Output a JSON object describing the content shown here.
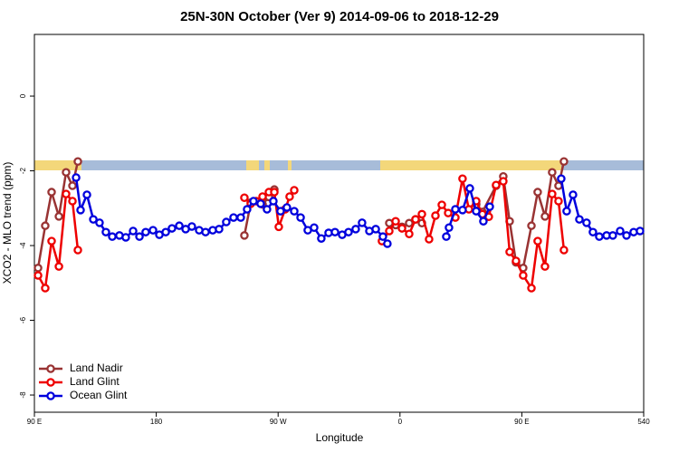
{
  "chart_data": {
    "type": "line",
    "title": "25N-30N October (Ver 9)   2014-09-06 to 2018-12-29",
    "x_label": "Longitude",
    "y_label": "XCO2 - MLO trend (ppm)",
    "xlim": [
      90,
      540
    ],
    "xticks": [
      {
        "value": 90,
        "label": "90 E"
      },
      180,
      {
        "value": 270,
        "label": "90 W"
      },
      {
        "value": 360,
        "label": "0"
      },
      {
        "value": 450,
        "label": "90 E"
      },
      540
    ],
    "ylim": [
      -8.46,
      1.65
    ],
    "yticks": [
      0,
      -2,
      -4,
      -6,
      -8
    ],
    "grid": false,
    "legend": "bottom-left",
    "series": [
      {
        "name": "Land Nadir",
        "color": "#993333",
        "x": [
          92.7,
          98,
          102.7,
          108.1,
          113.4,
          118.1,
          122.1,
          null,
          245.1,
          249.8,
          258.5,
          263.2,
          267.2,
          null,
          352.1,
          356.8,
          361.5,
          366.8,
          371.5,
          376.2,
          null,
          416.3,
          420.9,
          431,
          436.3,
          441,
          445.7,
          451,
          457.1,
          461.7,
          467.1,
          472.4,
          477.1,
          481.1
        ],
        "values": [
          -4.6,
          -3.47,
          -2.57,
          -3.22,
          -2.04,
          -2.4,
          -1.75,
          null,
          -3.73,
          -2.85,
          -2.9,
          -2.7,
          -2.5,
          null,
          -3.4,
          -3.45,
          -3.5,
          -3.4,
          -3.3,
          -3.4,
          null,
          -2.9,
          -3.1,
          -2.4,
          -2.15,
          -3.35,
          -4.45,
          -4.6,
          -3.47,
          -2.57,
          -3.22,
          -2.04,
          -2.4,
          -1.75
        ]
      },
      {
        "name": "Land Glint",
        "color": "#ee0000",
        "x": [
          92.7,
          98,
          102.7,
          108.1,
          113.4,
          118.1,
          122.1,
          null,
          245.1,
          249.8,
          253.8,
          258.5,
          263.2,
          267.2,
          270.5,
          275.2,
          278.5,
          281.9,
          null,
          346.7,
          352.1,
          356.8,
          361.5,
          366.8,
          371.5,
          376.2,
          381.5,
          386.2,
          390.9,
          395.6,
          400.9,
          406.2,
          410.9,
          416.3,
          420.9,
          425.6,
          431,
          436.3,
          441,
          445.7,
          451,
          457.1,
          461.7,
          467.1,
          472.4,
          477.1,
          481.1
        ],
        "values": [
          -4.8,
          -5.14,
          -3.88,
          -4.56,
          -2.62,
          -2.81,
          -4.12,
          null,
          -2.72,
          -2.88,
          -2.81,
          -2.69,
          -2.57,
          -2.57,
          -3.5,
          -3.03,
          -2.69,
          -2.52,
          null,
          -3.88,
          -3.61,
          -3.35,
          -3.54,
          -3.69,
          -3.3,
          -3.16,
          -3.83,
          -3.2,
          -2.91,
          -3.13,
          -3.25,
          -2.21,
          -3.03,
          -2.81,
          -3.16,
          -3.23,
          -2.38,
          -2.28,
          -4.17,
          -4.41,
          -4.8,
          -5.14,
          -3.88,
          -4.56,
          -2.62,
          -2.81,
          -4.12
        ]
      },
      {
        "name": "Ocean Glint",
        "color": "#0000dd",
        "x": [
          120.8,
          124.1,
          128.8,
          133.5,
          138.1,
          142.8,
          147.5,
          152.8,
          157.5,
          162.9,
          167.6,
          172.2,
          177.6,
          182.3,
          187,
          191.6,
          197,
          201.7,
          206.3,
          211.7,
          216.4,
          221.7,
          226.4,
          231.7,
          237.1,
          242.4,
          247.1,
          251.8,
          257.1,
          261.8,
          266.5,
          271.8,
          276.5,
          281.9,
          286.6,
          291.9,
          296.6,
          301.9,
          307.3,
          312,
          317.3,
          322,
          327.3,
          332,
          337.4,
          342.1,
          347.4,
          350.7,
          null,
          394.2,
          396.2,
          400.9,
          406.2,
          411.6,
          416.3,
          421.6,
          426.3,
          null,
          479.1,
          483.1,
          487.8,
          492.5,
          497.8,
          502.5,
          507.2,
          512.6,
          517.2,
          522.6,
          527.3,
          532.6,
          537.3
        ],
        "values": [
          -2.18,
          -3.05,
          -2.64,
          -3.3,
          -3.39,
          -3.64,
          -3.76,
          -3.73,
          -3.78,
          -3.61,
          -3.76,
          -3.64,
          -3.59,
          -3.71,
          -3.64,
          -3.54,
          -3.47,
          -3.56,
          -3.49,
          -3.59,
          -3.64,
          -3.59,
          -3.56,
          -3.37,
          -3.25,
          -3.25,
          -3.03,
          -2.81,
          -2.88,
          -3.03,
          -2.81,
          -3.08,
          -2.98,
          -3.08,
          -3.25,
          -3.59,
          -3.52,
          -3.81,
          -3.66,
          -3.64,
          -3.71,
          -3.64,
          -3.56,
          -3.39,
          -3.61,
          -3.56,
          -3.76,
          -3.95,
          null,
          -3.76,
          -3.52,
          -3.03,
          -3.05,
          -2.47,
          -3.08,
          -3.35,
          -2.96,
          null,
          -2.21,
          -3.08,
          -2.64,
          -3.3,
          -3.39,
          -3.64,
          -3.76,
          -3.73,
          -3.73,
          -3.61,
          -3.73,
          -3.64,
          -3.61
        ]
      }
    ]
  }
}
